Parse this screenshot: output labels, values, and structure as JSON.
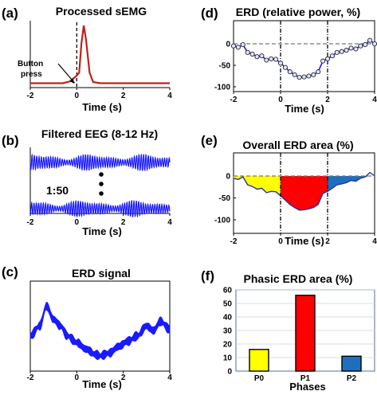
{
  "labels": {
    "a": "(a)",
    "b": "(b)",
    "c": "(c)",
    "d": "(d)",
    "e": "(e)",
    "f": "(f)"
  },
  "chart_data": [
    {
      "id": "a",
      "type": "line",
      "title": "Processed sEMG",
      "xlabel": "Time (s)",
      "xlim": [
        -2,
        4
      ],
      "xticks": [
        "-2",
        "0",
        "2",
        "4"
      ],
      "annotation": "Button press",
      "color": "#c0201a",
      "series": [
        {
          "x": [
            -2,
            -1.5,
            -1,
            -0.6,
            -0.3,
            -0.15,
            0,
            0.1,
            0.2,
            0.3,
            0.4,
            0.55,
            0.7,
            1,
            2,
            3,
            4
          ],
          "y": [
            0.02,
            0.02,
            0.02,
            0.02,
            0.05,
            0.1,
            0.15,
            0.2,
            0.7,
            1.0,
            0.75,
            0.2,
            0.04,
            0.02,
            0.02,
            0.02,
            0.02
          ]
        }
      ]
    },
    {
      "id": "b",
      "type": "line",
      "title": "Filtered  EEG (8-12 Hz)",
      "xlabel": "Time (s)",
      "xlim": [
        -2,
        4
      ],
      "xticks": [
        "-2",
        "0",
        "2",
        "4"
      ],
      "annotation": "1:50",
      "color": "#1a1aff",
      "traces": 2
    },
    {
      "id": "c",
      "type": "line",
      "title": "ERD signal",
      "xlabel": "Time (s)",
      "xlim": [
        -2,
        4
      ],
      "xticks": [
        "-2",
        "0",
        "2",
        "4"
      ],
      "color": "#1a1aff",
      "series": [
        {
          "x": [
            -2,
            -1.6,
            -1.3,
            -1.0,
            -0.7,
            -0.4,
            0,
            0.4,
            0.8,
            1.0,
            1.4,
            1.8,
            2.2,
            2.6,
            3.0,
            3.3,
            3.6,
            4.0
          ],
          "y": [
            0.4,
            0.55,
            0.85,
            0.65,
            0.55,
            0.4,
            0.3,
            0.2,
            0.12,
            0.1,
            0.14,
            0.24,
            0.32,
            0.4,
            0.55,
            0.48,
            0.62,
            0.5
          ]
        }
      ]
    },
    {
      "id": "d",
      "type": "line",
      "title": "ERD (relative power, %)",
      "xlabel": "Time (s)",
      "xlim": [
        -2,
        4
      ],
      "ylim": [
        -100,
        20
      ],
      "xticks": [
        "-2",
        "0",
        "2",
        "4"
      ],
      "yticks": [
        "0",
        "-50",
        "-100"
      ],
      "color": "#1a1aff",
      "series": [
        {
          "x": [
            -2,
            -1.8,
            -1.6,
            -1.4,
            -1.2,
            -1.0,
            -0.8,
            -0.6,
            -0.4,
            -0.2,
            0,
            0.2,
            0.4,
            0.6,
            0.8,
            1.0,
            1.2,
            1.4,
            1.6,
            1.8,
            2.0,
            2.2,
            2.4,
            2.6,
            2.8,
            3.0,
            3.2,
            3.4,
            3.6,
            3.8,
            4.0
          ],
          "y": [
            -5,
            -8,
            -2,
            -20,
            -24,
            -30,
            -28,
            -38,
            -35,
            -36,
            -45,
            -55,
            -65,
            -72,
            -78,
            -77,
            -75,
            -72,
            -65,
            -40,
            -35,
            -28,
            -20,
            -18,
            -15,
            -10,
            -12,
            -5,
            -2,
            8,
            0
          ]
        }
      ]
    },
    {
      "id": "e",
      "type": "area",
      "title": "Overall ERD area (%)",
      "xlabel": "Time (s)",
      "xlim": [
        -2,
        4
      ],
      "ylim": [
        -100,
        20
      ],
      "xticks": [
        "-2",
        "0",
        "2",
        "4"
      ],
      "yticks": [
        "0",
        "-50",
        "-100"
      ],
      "phase_colors": [
        "#ffff00",
        "#ff0000",
        "#1f6fc0"
      ],
      "series": [
        {
          "x": [
            -2,
            -1.8,
            -1.6,
            -1.4,
            -1.2,
            -1.0,
            -0.8,
            -0.6,
            -0.4,
            -0.2,
            0,
            0.2,
            0.4,
            0.6,
            0.8,
            1.0,
            1.2,
            1.4,
            1.6,
            1.8,
            2.0,
            2.2,
            2.4,
            2.6,
            2.8,
            3.0,
            3.2,
            3.4,
            3.6,
            3.8,
            4.0
          ],
          "y": [
            -5,
            -8,
            -2,
            -20,
            -24,
            -30,
            -28,
            -38,
            -35,
            -36,
            -45,
            -55,
            -65,
            -72,
            -78,
            -77,
            -75,
            -72,
            -65,
            -40,
            -35,
            -28,
            -20,
            -18,
            -15,
            -10,
            -12,
            -5,
            -2,
            8,
            0
          ]
        }
      ]
    },
    {
      "id": "f",
      "type": "bar",
      "title": "Phasic ERD area (%)",
      "xlabel": "Phases",
      "categories": [
        "P0",
        "P1",
        "P2"
      ],
      "values": [
        16,
        56,
        11
      ],
      "colors": [
        "#ffff00",
        "#ff0000",
        "#1f6fc0"
      ],
      "ylim": [
        0,
        60
      ],
      "yticks": [
        "0",
        "10",
        "20",
        "30",
        "40",
        "50",
        "60"
      ]
    }
  ]
}
